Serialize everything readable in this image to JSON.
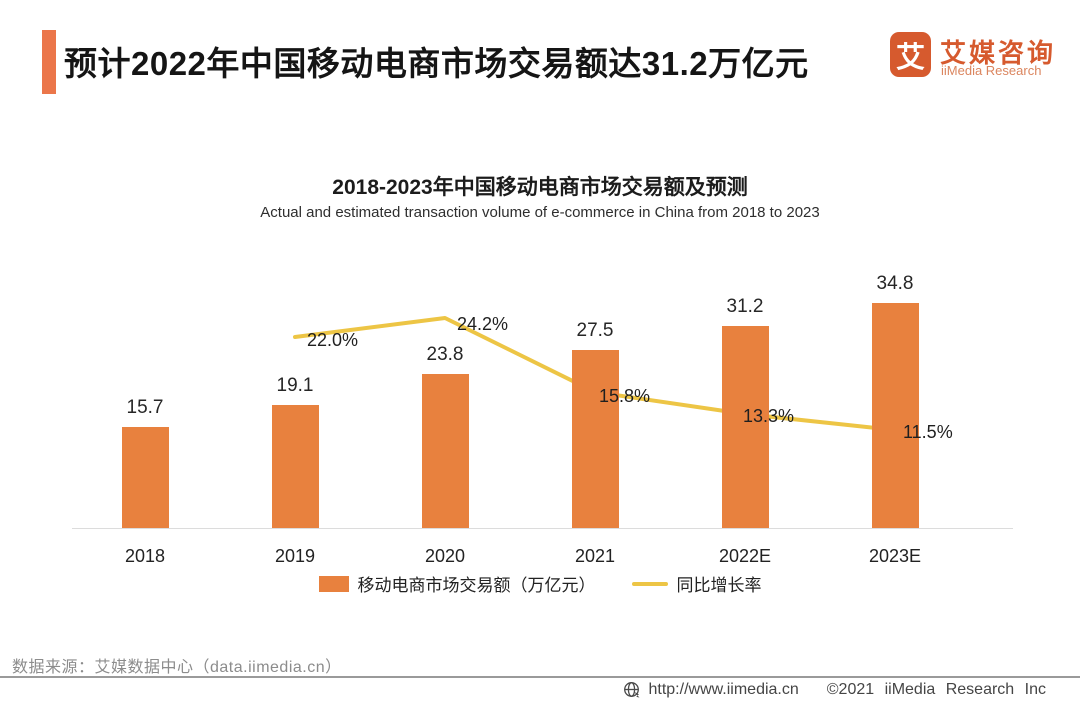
{
  "header": {
    "title": "预计2022年中国移动电商市场交易额达31.2万亿元",
    "accent_color": "#EB764A",
    "logo": {
      "glyph": "艾",
      "mark_color": "#D65A2E",
      "name_cn": "艾媒咨询",
      "name_en": "iiMedia Research",
      "name_en_color": "#DB855E"
    }
  },
  "chart": {
    "title": "2018-2023年中国移动电商市场交易额及预测",
    "subtitle": "Actual and estimated transaction volume of e-commerce in China from 2018 to 2023",
    "legend": [
      {
        "label": "移动电商市场交易额（万亿元）",
        "type": "bar",
        "color": "#E8813E"
      },
      {
        "label": "同比增长率",
        "type": "line",
        "color": "#EDC545"
      }
    ]
  },
  "chart_data": {
    "type": "bar+line",
    "title": "2018-2023年中国移动电商市场交易额及预测",
    "xlabel": "",
    "ylabel": "",
    "categories": [
      "2018",
      "2019",
      "2020",
      "2021",
      "2022E",
      "2023E"
    ],
    "series": [
      {
        "name": "移动电商市场交易额（万亿元）",
        "type": "bar",
        "color": "#E8813E",
        "values": [
          15.7,
          19.1,
          23.8,
          27.5,
          31.2,
          34.8
        ],
        "labels": [
          "15.7",
          "19.1",
          "23.8",
          "27.5",
          "31.2",
          "34.8"
        ]
      },
      {
        "name": "同比增长率",
        "type": "line",
        "color": "#EDC545",
        "axis": "secondary",
        "values": [
          null,
          22.0,
          24.2,
          15.8,
          13.3,
          11.5
        ],
        "labels": [
          "",
          "22.0%",
          "24.2%",
          "15.8%",
          "13.3%",
          "11.5%"
        ]
      }
    ],
    "bar_axis_range": [
      0,
      40
    ],
    "grid": false,
    "legend_position": "bottom"
  },
  "footer": {
    "source": "数据来源：艾媒数据中心（data.iimedia.cn）",
    "website": "http://www.iimedia.cn",
    "copyright": "©2021 iiMedia Research Inc"
  }
}
